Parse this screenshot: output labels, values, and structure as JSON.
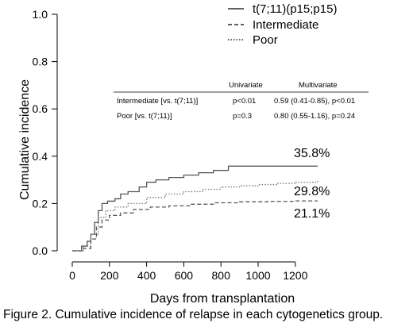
{
  "caption": "Figure 2.  Cumulative incidence of relapse in each cytogenetics group.",
  "chart_data": {
    "type": "line",
    "title": "",
    "xlabel": "Days from transplantation",
    "ylabel": "Cumulative incidence",
    "xlim": [
      0,
      1320
    ],
    "ylim": [
      0,
      1.0
    ],
    "xticks": [
      0,
      200,
      400,
      600,
      800,
      1000,
      1200
    ],
    "yticks": [
      "0.0",
      "0.2",
      "0.4",
      "0.6",
      "0.8",
      "1.0"
    ],
    "grid": false,
    "legend_position": "top-right",
    "series": [
      {
        "name": "t(7;11)(p15;p15)",
        "style": "solid",
        "color": "#555555",
        "end_label": "35.8%",
        "points": [
          [
            0,
            0
          ],
          [
            20,
            0
          ],
          [
            50,
            0.02
          ],
          [
            80,
            0.04
          ],
          [
            100,
            0.07
          ],
          [
            120,
            0.12
          ],
          [
            140,
            0.17
          ],
          [
            160,
            0.2
          ],
          [
            190,
            0.21
          ],
          [
            230,
            0.22
          ],
          [
            260,
            0.24
          ],
          [
            300,
            0.25
          ],
          [
            360,
            0.27
          ],
          [
            400,
            0.29
          ],
          [
            450,
            0.3
          ],
          [
            520,
            0.31
          ],
          [
            600,
            0.32
          ],
          [
            680,
            0.33
          ],
          [
            760,
            0.34
          ],
          [
            840,
            0.358
          ],
          [
            1320,
            0.358
          ]
        ]
      },
      {
        "name": "Intermediate",
        "style": "dashed",
        "color": "#555555",
        "end_label": "21.1%",
        "points": [
          [
            0,
            0
          ],
          [
            25,
            0
          ],
          [
            60,
            0.01
          ],
          [
            100,
            0.05
          ],
          [
            130,
            0.1
          ],
          [
            160,
            0.13
          ],
          [
            200,
            0.15
          ],
          [
            260,
            0.16
          ],
          [
            330,
            0.175
          ],
          [
            420,
            0.185
          ],
          [
            520,
            0.19
          ],
          [
            640,
            0.197
          ],
          [
            760,
            0.203
          ],
          [
            900,
            0.207
          ],
          [
            1050,
            0.209
          ],
          [
            1200,
            0.211
          ],
          [
            1320,
            0.211
          ]
        ]
      },
      {
        "name": "Poor",
        "style": "dotted",
        "color": "#777777",
        "end_label": "29.8%",
        "points": [
          [
            0,
            0
          ],
          [
            20,
            0
          ],
          [
            60,
            0.02
          ],
          [
            100,
            0.07
          ],
          [
            140,
            0.14
          ],
          [
            180,
            0.17
          ],
          [
            230,
            0.185
          ],
          [
            300,
            0.2
          ],
          [
            400,
            0.225
          ],
          [
            500,
            0.24
          ],
          [
            600,
            0.25
          ],
          [
            700,
            0.26
          ],
          [
            800,
            0.27
          ],
          [
            900,
            0.275
          ],
          [
            1000,
            0.28
          ],
          [
            1100,
            0.285
          ],
          [
            1200,
            0.29
          ],
          [
            1320,
            0.298
          ]
        ]
      }
    ],
    "annotations": {
      "columns": [
        "Univariate",
        "Multivariate"
      ],
      "rows": [
        {
          "label": "Intermediate [vs. t(7;11)]",
          "uni": "p<0.01",
          "multi": "0.59 (0.41-0.85), p<0.01"
        },
        {
          "label": "Poor [vs. t(7;11)]",
          "uni": "p=0.3",
          "multi": "0.80 (0.55-1.16), p=0.24"
        }
      ]
    }
  }
}
